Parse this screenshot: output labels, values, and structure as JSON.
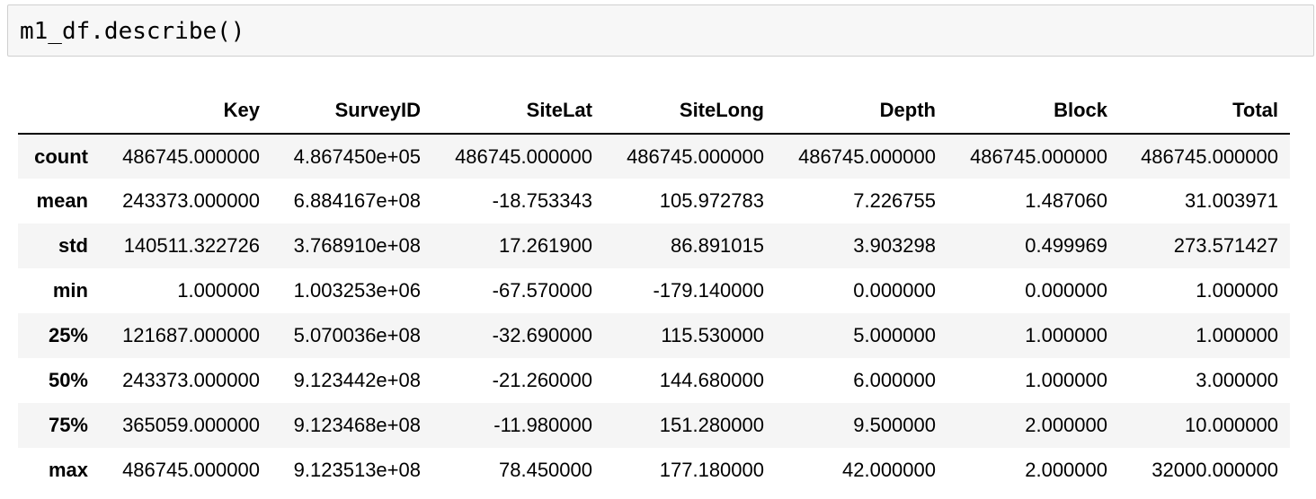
{
  "input_cell": {
    "code": "m1_df.describe()"
  },
  "dataframe": {
    "columns": [
      "Key",
      "SurveyID",
      "SiteLat",
      "SiteLong",
      "Depth",
      "Block",
      "Total"
    ],
    "rows": [
      {
        "label": "count",
        "values": [
          "486745.000000",
          "4.867450e+05",
          "486745.000000",
          "486745.000000",
          "486745.000000",
          "486745.000000",
          "486745.000000"
        ]
      },
      {
        "label": "mean",
        "values": [
          "243373.000000",
          "6.884167e+08",
          "-18.753343",
          "105.972783",
          "7.226755",
          "1.487060",
          "31.003971"
        ]
      },
      {
        "label": "std",
        "values": [
          "140511.322726",
          "3.768910e+08",
          "17.261900",
          "86.891015",
          "3.903298",
          "0.499969",
          "273.571427"
        ]
      },
      {
        "label": "min",
        "values": [
          "1.000000",
          "1.003253e+06",
          "-67.570000",
          "-179.140000",
          "0.000000",
          "0.000000",
          "1.000000"
        ]
      },
      {
        "label": "25%",
        "values": [
          "121687.000000",
          "5.070036e+08",
          "-32.690000",
          "115.530000",
          "5.000000",
          "1.000000",
          "1.000000"
        ]
      },
      {
        "label": "50%",
        "values": [
          "243373.000000",
          "9.123442e+08",
          "-21.260000",
          "144.680000",
          "6.000000",
          "1.000000",
          "3.000000"
        ]
      },
      {
        "label": "75%",
        "values": [
          "365059.000000",
          "9.123468e+08",
          "-11.980000",
          "151.280000",
          "9.500000",
          "2.000000",
          "10.000000"
        ]
      },
      {
        "label": "max",
        "values": [
          "486745.000000",
          "9.123513e+08",
          "78.450000",
          "177.180000",
          "42.000000",
          "2.000000",
          "32000.000000"
        ]
      }
    ]
  }
}
